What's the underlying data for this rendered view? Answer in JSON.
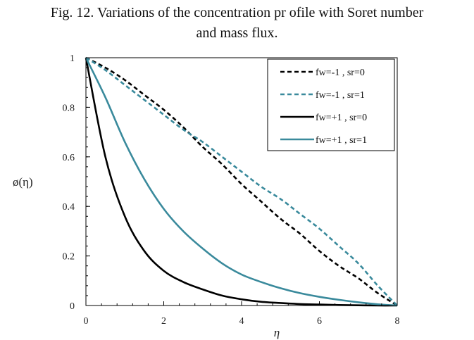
{
  "figure": {
    "caption_line1": "Fig. 12. Variations of the concentration pr ofile with Soret number",
    "caption_line2": "and mass flux."
  },
  "chart_data": {
    "type": "line",
    "title": "Fig. 12. Variations of the concentration pr ofile with Soret number and mass flux.",
    "xlabel": "η",
    "ylabel": "ø(η)",
    "xlim": [
      0,
      8
    ],
    "ylim": [
      0,
      1
    ],
    "x_ticks": [
      "0",
      "2",
      "4",
      "6",
      "8"
    ],
    "y_ticks": [
      "0",
      "0.2",
      "0.4",
      "0.6",
      "0.8",
      "1"
    ],
    "grid": false,
    "legend_position": "top-right",
    "x": [
      0,
      0.5,
      1,
      1.5,
      2,
      2.5,
      3,
      3.5,
      4,
      4.5,
      5,
      5.5,
      6,
      6.5,
      7,
      7.5,
      8
    ],
    "series": [
      {
        "name": "fw=-1 , sr=0",
        "color": "#000000",
        "style": "dashed",
        "values": [
          1.0,
          0.96,
          0.91,
          0.85,
          0.79,
          0.72,
          0.64,
          0.57,
          0.49,
          0.42,
          0.35,
          0.29,
          0.22,
          0.16,
          0.11,
          0.05,
          0.0
        ]
      },
      {
        "name": "fw=-1 , sr=1",
        "color": "#3a8a9c",
        "style": "dashed",
        "values": [
          1.0,
          0.95,
          0.89,
          0.83,
          0.77,
          0.71,
          0.66,
          0.6,
          0.54,
          0.48,
          0.43,
          0.37,
          0.31,
          0.24,
          0.17,
          0.08,
          0.0
        ]
      },
      {
        "name": "fw=+1 , sr=0",
        "color": "#000000",
        "style": "solid",
        "values": [
          1.0,
          0.6,
          0.36,
          0.22,
          0.14,
          0.095,
          0.065,
          0.04,
          0.025,
          0.015,
          0.01,
          0.006,
          0.004,
          0.002,
          0.001,
          0.0,
          0.0
        ]
      },
      {
        "name": "fw=+1 , sr=1",
        "color": "#3a8a9c",
        "style": "solid",
        "values": [
          1.0,
          0.84,
          0.66,
          0.51,
          0.39,
          0.3,
          0.23,
          0.17,
          0.125,
          0.095,
          0.07,
          0.05,
          0.035,
          0.023,
          0.013,
          0.005,
          0.0
        ]
      }
    ]
  }
}
